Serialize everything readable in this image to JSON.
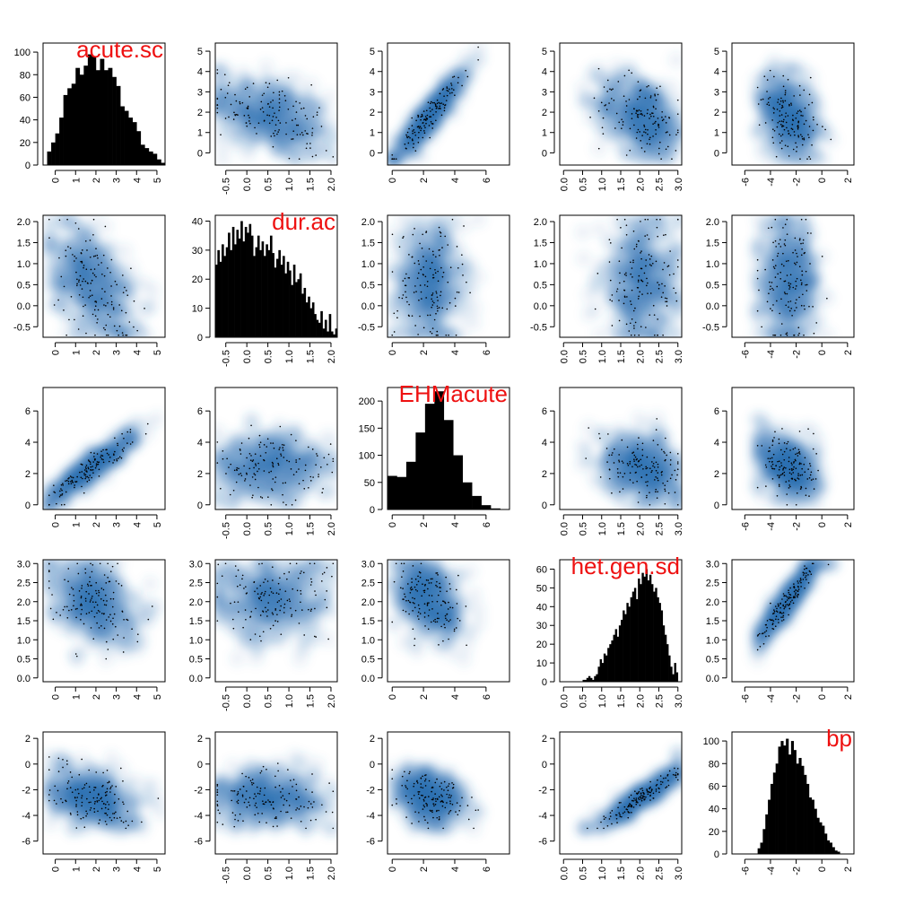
{
  "colors": {
    "label": "#ee1111",
    "density": "#2a6fb5",
    "density_dark": "#08306b",
    "bar": "#000000",
    "point": "#000000"
  },
  "chart_data": {
    "type": "scatter-matrix",
    "description_of_panels": "off-diagonal: smoothed density scatter with points; diagonal: histogram",
    "variables": [
      {
        "name": "acute.sc",
        "range": [
          -0.6,
          5.4
        ],
        "ticks": [
          0,
          1,
          2,
          3,
          4,
          5
        ],
        "tick_labels": [
          "0",
          "1",
          "2",
          "3",
          "4",
          "5"
        ]
      },
      {
        "name": "dur.ac",
        "range": [
          -0.75,
          2.15
        ],
        "ticks": [
          -0.5,
          0.0,
          0.5,
          1.0,
          1.5,
          2.0
        ],
        "tick_labels": [
          "-0.5",
          "0.0",
          "0.5",
          "1.0",
          "1.5",
          "2.0"
        ]
      },
      {
        "name": "EHMacute",
        "range": [
          -0.3,
          7.5
        ],
        "ticks": [
          0,
          2,
          4,
          6
        ],
        "tick_labels": [
          "0",
          "2",
          "4",
          "6"
        ]
      },
      {
        "name": "het.gen.sd",
        "range": [
          -0.1,
          3.1
        ],
        "ticks": [
          0.0,
          0.5,
          1.0,
          1.5,
          2.0,
          2.5,
          3.0
        ],
        "tick_labels": [
          "0.0",
          "0.5",
          "1.0",
          "1.5",
          "2.0",
          "2.5",
          "3.0"
        ]
      },
      {
        "name": "bp",
        "range": [
          -7.0,
          2.5
        ],
        "ticks": [
          -6,
          -4,
          -2,
          0,
          2
        ],
        "tick_labels": [
          "-6",
          "-4",
          "-2",
          "0",
          "2"
        ]
      }
    ],
    "histograms": [
      {
        "variable": "acute.sc",
        "yrange": [
          0,
          108
        ],
        "yticks": [
          0,
          20,
          40,
          60,
          80,
          100
        ],
        "bin_start": -0.4,
        "bin_width": 0.2,
        "counts": [
          12,
          20,
          28,
          42,
          62,
          68,
          72,
          86,
          80,
          88,
          98,
          96,
          84,
          94,
          84,
          86,
          78,
          70,
          52,
          48,
          42,
          38,
          30,
          18,
          15,
          12,
          10,
          5,
          2,
          5,
          6
        ]
      },
      {
        "variable": "dur.ac",
        "yrange": [
          0,
          42
        ],
        "yticks": [
          0,
          10,
          20,
          30,
          40
        ],
        "bin_start": -0.75,
        "bin_width": 0.05,
        "counts": [
          25,
          30,
          26,
          32,
          28,
          31,
          36,
          30,
          38,
          32,
          37,
          34,
          40,
          33,
          38,
          36,
          39,
          35,
          28,
          31,
          35,
          30,
          33,
          28,
          32,
          30,
          35,
          29,
          24,
          27,
          30,
          25,
          28,
          22,
          26,
          23,
          18,
          25,
          19,
          20,
          22,
          15,
          17,
          12,
          14,
          10,
          12,
          8,
          6,
          5,
          9,
          3,
          6,
          2,
          8,
          2,
          1,
          3
        ]
      },
      {
        "variable": "EHMacute",
        "yrange": [
          0,
          225
        ],
        "yticks": [
          0,
          50,
          100,
          150,
          200
        ],
        "bin_start": -0.3,
        "bin_width": 0.6,
        "counts": [
          62,
          60,
          88,
          142,
          195,
          218,
          165,
          100,
          50,
          25,
          8,
          2
        ]
      },
      {
        "variable": "het.gen.sd",
        "yrange": [
          0,
          65
        ],
        "yticks": [
          0,
          10,
          20,
          30,
          40,
          50,
          60
        ],
        "bin_start": 0.5,
        "bin_width": 0.05,
        "counts": [
          1,
          1,
          2,
          3,
          2,
          1,
          3,
          4,
          8,
          12,
          10,
          15,
          14,
          18,
          20,
          22,
          25,
          28,
          24,
          30,
          33,
          38,
          36,
          42,
          40,
          45,
          48,
          50,
          44,
          55,
          52,
          58,
          56,
          60,
          54,
          57,
          52,
          48,
          50,
          45,
          42,
          38,
          30,
          25,
          20,
          14,
          8,
          4,
          10,
          5
        ]
      },
      {
        "variable": "bp",
        "yrange": [
          0,
          108
        ],
        "yticks": [
          0,
          20,
          40,
          60,
          80,
          100
        ],
        "bin_start": -5.0,
        "bin_width": 0.2,
        "counts": [
          5,
          10,
          22,
          35,
          48,
          62,
          72,
          80,
          95,
          100,
          96,
          102,
          88,
          100,
          92,
          80,
          85,
          78,
          70,
          62,
          50,
          48,
          40,
          32,
          28,
          25,
          18,
          12,
          10,
          6,
          3,
          2
        ]
      }
    ],
    "pairs": [
      {
        "i": 1,
        "j": 0,
        "corr": -0.45,
        "row": "acute.sc",
        "col": "dur.ac"
      },
      {
        "i": 2,
        "j": 0,
        "corr": 0.93,
        "row": "acute.sc",
        "col": "EHMacute"
      },
      {
        "i": 3,
        "j": 0,
        "corr": -0.35,
        "row": "acute.sc",
        "col": "het.gen.sd"
      },
      {
        "i": 4,
        "j": 0,
        "corr": -0.35,
        "row": "acute.sc",
        "col": "bp"
      },
      {
        "i": 2,
        "j": 1,
        "corr": 0.0,
        "row": "dur.ac",
        "col": "EHMacute"
      },
      {
        "i": 3,
        "j": 1,
        "corr": 0.0,
        "row": "dur.ac",
        "col": "het.gen.sd"
      },
      {
        "i": 4,
        "j": 1,
        "corr": 0.0,
        "row": "dur.ac",
        "col": "bp"
      },
      {
        "i": 3,
        "j": 2,
        "corr": -0.3,
        "row": "EHMacute",
        "col": "het.gen.sd"
      },
      {
        "i": 4,
        "j": 2,
        "corr": -0.3,
        "row": "EHMacute",
        "col": "bp"
      },
      {
        "i": 4,
        "j": 3,
        "corr": 0.95,
        "row": "het.gen.sd",
        "col": "bp"
      }
    ]
  }
}
